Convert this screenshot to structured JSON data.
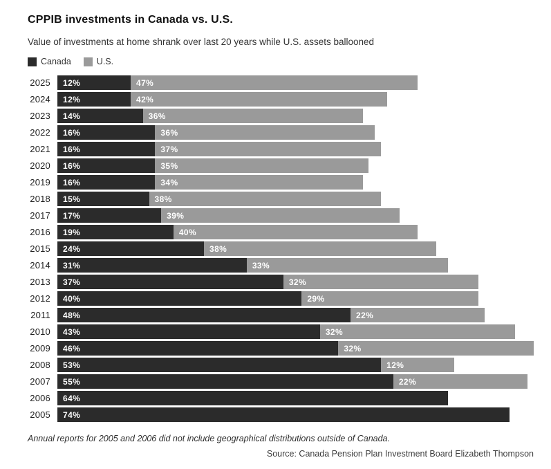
{
  "header": {
    "title": "CPPIB investments in Canada vs. U.S.",
    "subtitle": "Value of investments at home shrank over last 20 years while U.S. assets ballooned"
  },
  "legend": [
    {
      "label": "Canada",
      "color": "#2b2b2b"
    },
    {
      "label": "U.S.",
      "color": "#9a9a9a"
    }
  ],
  "chart_data": {
    "type": "bar",
    "orientation": "horizontal",
    "stacked": true,
    "title": "CPPIB investments in Canada vs. U.S.",
    "subtitle": "Value of investments at home shrank over last 20 years while U.S. assets ballooned",
    "categories": [
      "2025",
      "2024",
      "2023",
      "2022",
      "2021",
      "2020",
      "2019",
      "2018",
      "2017",
      "2016",
      "2015",
      "2014",
      "2013",
      "2012",
      "2011",
      "2010",
      "2009",
      "2008",
      "2007",
      "2006",
      "2005"
    ],
    "series": [
      {
        "name": "Canada",
        "color": "#2b2b2b",
        "values": [
          12,
          12,
          14,
          16,
          16,
          16,
          16,
          15,
          17,
          19,
          24,
          31,
          37,
          40,
          48,
          43,
          46,
          53,
          55,
          64,
          74
        ]
      },
      {
        "name": "U.S.",
        "color": "#9a9a9a",
        "values": [
          47,
          42,
          36,
          36,
          37,
          35,
          34,
          38,
          39,
          40,
          38,
          33,
          32,
          29,
          22,
          32,
          32,
          12,
          22,
          null,
          null
        ]
      }
    ],
    "value_suffix": "%",
    "xlim": [
      0,
      78
    ],
    "grid": false,
    "legend_position": "top",
    "value_labels": "inside-start"
  },
  "footnote": "Annual reports for 2005 and 2006 did not include geographical distributions outside of Canada.",
  "source": "Source: Canada Pension Plan Investment Board Elizabeth Thompson"
}
